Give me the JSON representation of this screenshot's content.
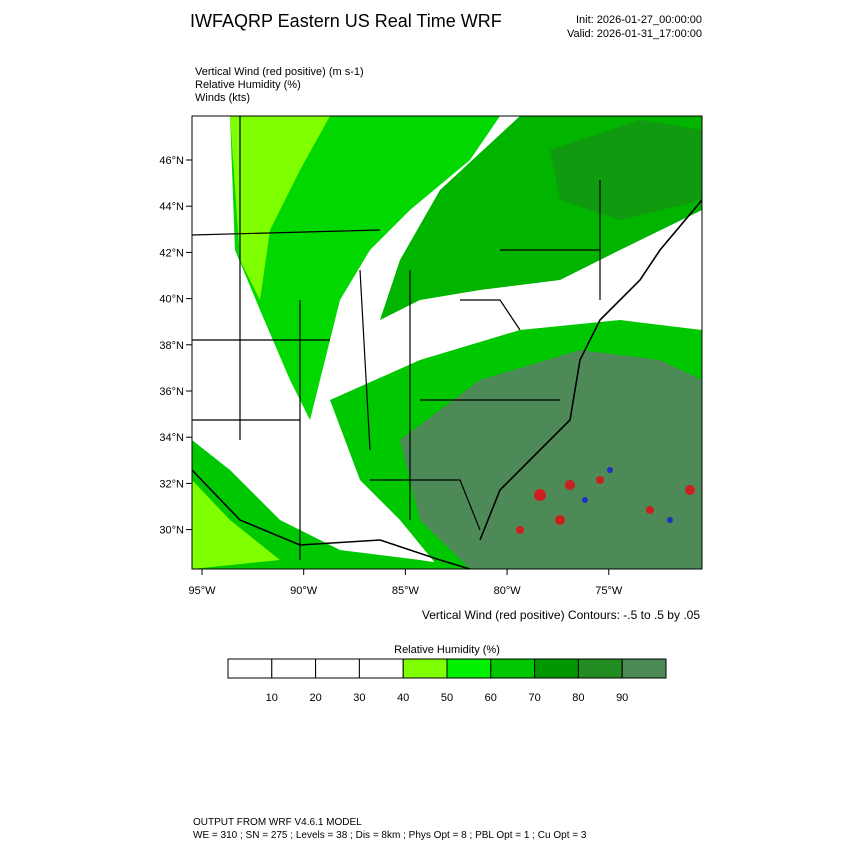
{
  "header": {
    "title": "IWFAQRP Eastern US Real Time WRF",
    "init": "Init: 2026-01-27_00:00:00",
    "valid": "Valid: 2026-01-31_17:00:00"
  },
  "fields": [
    "Vertical Wind (red positive)   (m s-1)",
    "Relative Humidity   (%)",
    "Winds   (kts)"
  ],
  "map": {
    "lat_labels": [
      "46°N",
      "44°N",
      "42°N",
      "40°N",
      "38°N",
      "36°N",
      "34°N",
      "32°N",
      "30°N"
    ],
    "lon_labels": [
      "95°W",
      "90°W",
      "85°W",
      "80°W",
      "75°W"
    ],
    "contour_note": "Vertical Wind (red positive) Contours: -.5 to .5 by .05"
  },
  "colorbar": {
    "title": "Relative Humidity  (%)",
    "labels": [
      10,
      20,
      30,
      40,
      50,
      60,
      70,
      80,
      90
    ],
    "colors": [
      "#ffffff",
      "#ffffff",
      "#ffffff",
      "#ffffff",
      "#7fff00",
      "#00f000",
      "#00c800",
      "#009600",
      "#228b22",
      "#4e8a58"
    ]
  },
  "footer": [
    "OUTPUT FROM WRF V4.6.1 MODEL",
    "WE = 310 ; SN = 275 ; Levels = 38 ; Dis = 8km ; Phys Opt = 8 ; PBL Opt = 1 ; Cu Opt = 3"
  ]
}
